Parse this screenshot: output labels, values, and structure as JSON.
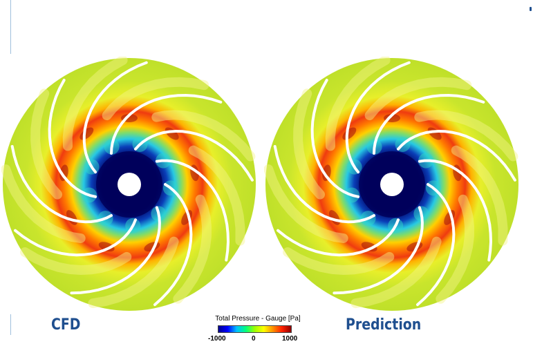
{
  "captions": {
    "left": "CFD",
    "right": "Prediction"
  },
  "legend": {
    "title": "Total Pressure - Gauge [Pa]",
    "min_label": "-1000",
    "mid_label": "0",
    "max_label": "1000",
    "colors": [
      "#00008f",
      "#0000ff",
      "#00c0ff",
      "#00ff80",
      "#9fff00",
      "#ffff00",
      "#ff9000",
      "#ff2000",
      "#8f0000"
    ]
  },
  "colors": {
    "caption": "#1f4f8f",
    "rule": "#9fbfdc",
    "outer_field": "#c8e62a",
    "hub": "#00005a"
  }
}
